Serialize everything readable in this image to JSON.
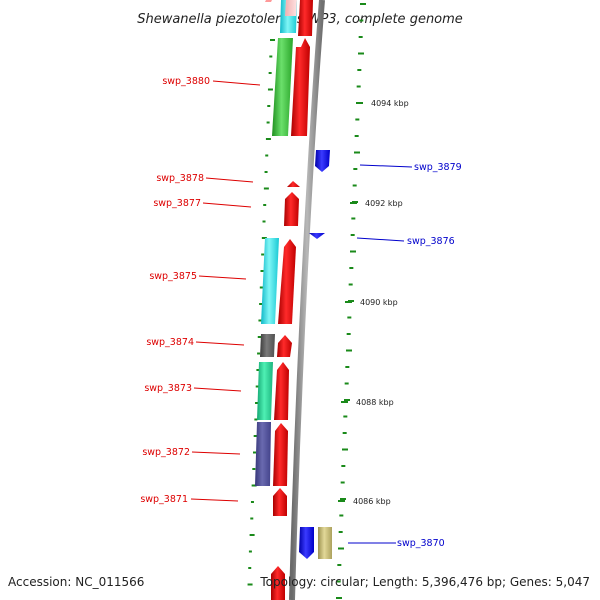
{
  "title": "Shewanella piezotolerans WP3, complete genome",
  "footer": {
    "accession": "Accession: NC_011566",
    "topology": "Topology: circular; Length: 5,396,476 bp; Genes: 5,047"
  },
  "colors": {
    "backbone": "#8c8c8c",
    "forward_label": "#dd0000",
    "reverse_label": "#0000cc",
    "tick": "#1a8a1a"
  },
  "kbp_marks": [
    {
      "label": "4094 kbp",
      "kbp": 4094
    },
    {
      "label": "4092 kbp",
      "kbp": 4092
    },
    {
      "label": "4090 kbp",
      "kbp": 4090
    },
    {
      "label": "4088 kbp",
      "kbp": 4088
    },
    {
      "label": "4086 kbp",
      "kbp": 4086
    }
  ],
  "genes": [
    {
      "name": "swp_3880",
      "strand": "forward",
      "cog_color": "#44cc44"
    },
    {
      "name": "swp_3879",
      "strand": "reverse",
      "cog_color": "#1111ee"
    },
    {
      "name": "swp_3878",
      "strand": "forward",
      "cog_color": ""
    },
    {
      "name": "swp_3877",
      "strand": "forward",
      "cog_color": ""
    },
    {
      "name": "swp_3876",
      "strand": "reverse",
      "cog_color": ""
    },
    {
      "name": "swp_3875",
      "strand": "forward",
      "cog_color": "#33eeee"
    },
    {
      "name": "swp_3874",
      "strand": "forward",
      "cog_color": "#666666"
    },
    {
      "name": "swp_3873",
      "strand": "forward",
      "cog_color": "#22dd99"
    },
    {
      "name": "swp_3872",
      "strand": "forward",
      "cog_color": "#555599"
    },
    {
      "name": "swp_3871",
      "strand": "forward",
      "cog_color": ""
    },
    {
      "name": "swp_3870",
      "strand": "reverse",
      "cog_color": "#c8bd7a"
    }
  ]
}
